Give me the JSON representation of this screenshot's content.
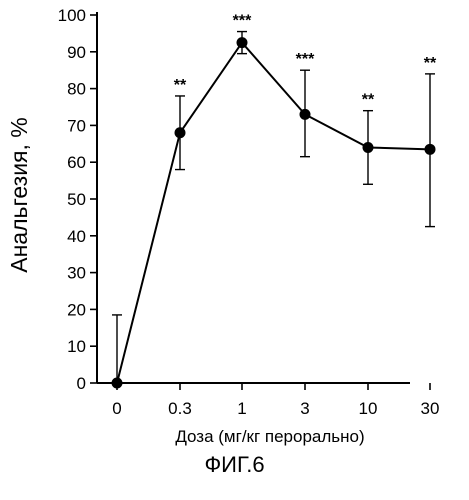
{
  "figure_label": "ФИГ.6",
  "chart_data": {
    "type": "line",
    "xlabel": "Доза (мг/кг перорально)",
    "ylabel": "Анальгезия, %",
    "categories": [
      "0",
      "0.3",
      "1",
      "3",
      "10",
      "30"
    ],
    "yticks": [
      "0",
      "10",
      "20",
      "30",
      "40",
      "50",
      "60",
      "70",
      "80",
      "90",
      "100"
    ],
    "ylim": [
      0,
      100
    ],
    "grid": false,
    "series": [
      {
        "values": [
          0,
          68,
          92.5,
          73,
          64,
          63.5
        ],
        "error_upper": [
          18.5,
          78,
          95.5,
          85,
          74,
          84
        ],
        "error_lower": [
          0,
          58,
          89.5,
          61.5,
          54,
          42.5
        ],
        "significance": [
          "",
          "**",
          "***",
          "***",
          "**",
          "**"
        ]
      }
    ]
  }
}
